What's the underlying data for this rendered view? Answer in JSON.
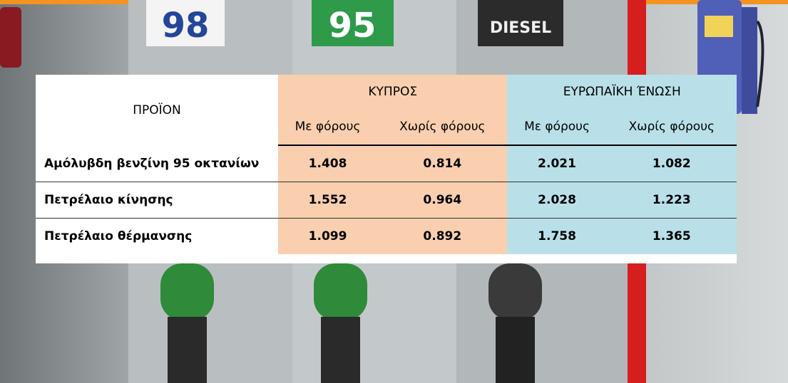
{
  "background": {
    "signs": [
      "98",
      "95",
      "DIESEL"
    ]
  },
  "table": {
    "header": {
      "product": "ΠΡΟΪΟΝ",
      "groups": [
        "ΚΥΠΡΟΣ",
        "ΕΥΡΩΠΑΪΚΗ ΈΝΩΣΗ"
      ],
      "subheaders": [
        "Με φόρους",
        "Χωρίς φόρους",
        "Με φόρους",
        "Χωρίς φόρους"
      ]
    },
    "rows": [
      [
        "Αμόλυβδη βενζίνη 95 οκτανίων",
        1.408,
        0.814,
        2.021,
        1.082
      ],
      [
        "Πετρέλαιο κίνησης",
        1.552,
        0.964,
        2.028,
        1.223
      ],
      [
        "Πετρέλαιο θέρμανσης",
        1.099,
        0.892,
        1.758,
        1.365
      ]
    ]
  }
}
